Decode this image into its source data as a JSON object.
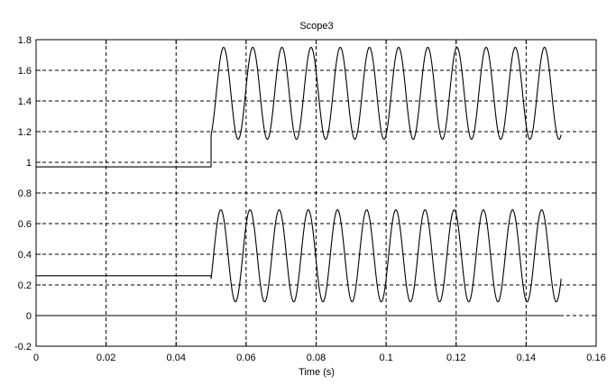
{
  "chart_data": {
    "type": "line",
    "title": "Scope3",
    "xlabel": "Time (s)",
    "ylabel": "",
    "xlim": [
      0,
      0.16
    ],
    "ylim": [
      -0.2,
      1.8
    ],
    "xticks": [
      "0",
      "0.02",
      "0.04",
      "0.06",
      "0.08",
      "0.1",
      "0.12",
      "0.14",
      "0.16"
    ],
    "yticks": [
      "-0.2",
      "0",
      "0.2",
      "0.4",
      "0.6",
      "0.8",
      "1",
      "1.2",
      "1.4",
      "1.6",
      "1.8"
    ],
    "grid": true,
    "legend": "none",
    "line_color": "#000000",
    "series": [
      {
        "description": "upper signal: constant ~0.97 until t=0.05 s, then sine oscillation between ~1.15 and ~1.75 (frequency ~120 Hz)",
        "pre_step_value": 0.97,
        "step_time": 0.05,
        "oscillation_min": 1.15,
        "oscillation_max": 1.75,
        "frequency_hz": 120,
        "end_time": 0.15,
        "samples": [
          {
            "x": 0,
            "y": 0.97
          },
          {
            "x": 0.05,
            "y": 0.97
          },
          {
            "x": 0.05,
            "y": 1.18
          },
          {
            "x": 0.0521,
            "y": 1.45
          },
          {
            "x": 0.0542,
            "y": 1.75
          },
          {
            "x": 0.0583,
            "y": 1.15
          },
          {
            "x": 0.0625,
            "y": 1.75
          },
          {
            "x": 0.0667,
            "y": 1.15
          },
          {
            "x": 0.15,
            "y": 1.2
          }
        ]
      },
      {
        "description": "middle signal: constant ~0.26 until t=0.05 s, then sine oscillation between ~0.09 and ~0.69 (frequency ~120 Hz)",
        "pre_step_value": 0.26,
        "step_time": 0.05,
        "oscillation_min": 0.09,
        "oscillation_max": 0.69,
        "frequency_hz": 120,
        "end_time": 0.15,
        "samples": [
          {
            "x": 0,
            "y": 0.26
          },
          {
            "x": 0.05,
            "y": 0.26
          },
          {
            "x": 0.05,
            "y": 0.24
          },
          {
            "x": 0.0521,
            "y": 0.69
          },
          {
            "x": 0.0562,
            "y": 0.09
          },
          {
            "x": 0.0604,
            "y": 0.69
          },
          {
            "x": 0.0646,
            "y": 0.09
          },
          {
            "x": 0.15,
            "y": 0.22
          }
        ]
      },
      {
        "description": "bottom signal: constant 0 over the whole range",
        "samples": [
          {
            "x": 0,
            "y": 0
          },
          {
            "x": 0.15,
            "y": 0
          }
        ]
      }
    ]
  }
}
